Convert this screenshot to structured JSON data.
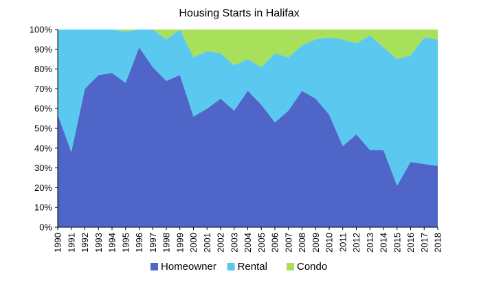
{
  "chart_data": {
    "type": "area",
    "stacked": true,
    "percent": true,
    "title": "Housing Starts in Halifax",
    "xlabel": "",
    "ylabel": "",
    "ylim": [
      0,
      100
    ],
    "y_ticks": [
      "0%",
      "10%",
      "20%",
      "30%",
      "40%",
      "50%",
      "60%",
      "70%",
      "80%",
      "90%",
      "100%"
    ],
    "grid": false,
    "legend_position": "bottom",
    "x": [
      "1990",
      "1991",
      "1992",
      "1993",
      "1994",
      "1995",
      "1996",
      "1997",
      "1998",
      "1999",
      "2000",
      "2001",
      "2002",
      "2003",
      "2004",
      "2005",
      "2006",
      "2007",
      "2008",
      "2009",
      "2010",
      "2011",
      "2012",
      "2013",
      "2014",
      "2015",
      "2016",
      "2017",
      "2018"
    ],
    "series": [
      {
        "name": "Homeowner",
        "color": "#4f66c8",
        "values": [
          57,
          38,
          70,
          77,
          78,
          73,
          91,
          81,
          74,
          77,
          56,
          60,
          65,
          59,
          69,
          62,
          53,
          59,
          69,
          65,
          57,
          41,
          47,
          39,
          39,
          21,
          33,
          32,
          31
        ]
      },
      {
        "name": "Rental",
        "color": "#5bc8f0",
        "values": [
          43,
          62,
          30,
          23,
          22,
          26,
          9,
          19,
          21,
          23,
          30,
          29,
          23,
          23,
          16,
          19,
          35,
          27,
          23,
          30,
          39,
          54,
          46,
          58,
          52,
          64,
          54,
          64,
          64
        ]
      },
      {
        "name": "Condo",
        "color": "#a8e05c",
        "values": [
          0,
          0,
          0,
          0,
          0,
          1,
          0,
          0,
          5,
          0,
          14,
          11,
          12,
          18,
          15,
          19,
          12,
          14,
          8,
          5,
          4,
          5,
          7,
          3,
          9,
          15,
          13,
          4,
          5
        ]
      }
    ]
  }
}
